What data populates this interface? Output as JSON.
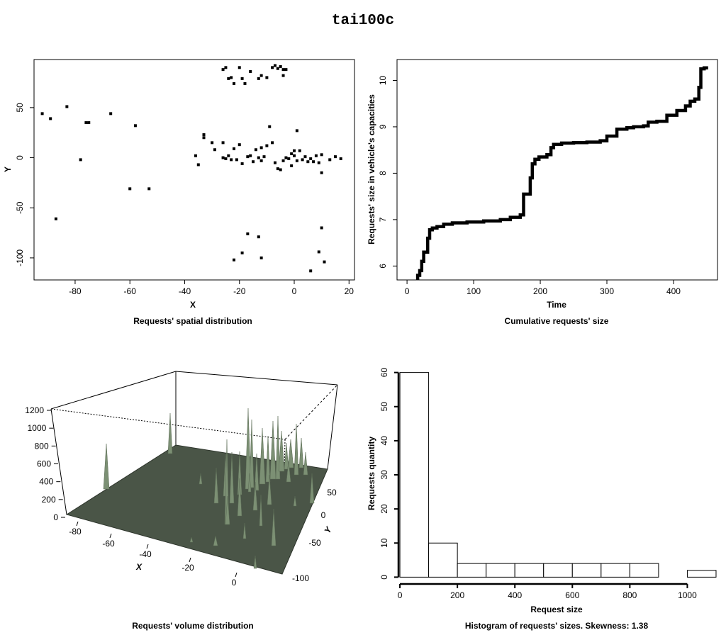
{
  "title": "tai100c",
  "chart_data": [
    {
      "type": "scatter",
      "caption": "Requests' spatial distribution",
      "xlabel": "X",
      "ylabel": "Y",
      "xlim": [
        -95,
        22
      ],
      "ylim": [
        -122,
        98
      ],
      "xticks": [
        -80,
        -60,
        -40,
        -20,
        0,
        20
      ],
      "yticks": [
        -100,
        -50,
        0,
        50
      ],
      "points": [
        [
          -92,
          44
        ],
        [
          -89,
          39
        ],
        [
          -83,
          51
        ],
        [
          -78,
          -2
        ],
        [
          -76,
          35
        ],
        [
          -75,
          35
        ],
        [
          -67,
          44
        ],
        [
          -60,
          -31
        ],
        [
          -58,
          32
        ],
        [
          -53,
          -31
        ],
        [
          -87,
          -61
        ],
        [
          -36,
          2
        ],
        [
          -35,
          -7
        ],
        [
          -33,
          20
        ],
        [
          -33,
          23
        ],
        [
          -30,
          15
        ],
        [
          -29,
          8
        ],
        [
          -26,
          15
        ],
        [
          -26,
          0
        ],
        [
          -25,
          -1
        ],
        [
          -24,
          2
        ],
        [
          -23,
          -2
        ],
        [
          -22,
          9
        ],
        [
          -21,
          -2
        ],
        [
          -20,
          13
        ],
        [
          -19,
          -6
        ],
        [
          -17,
          1
        ],
        [
          -16,
          2
        ],
        [
          -15,
          -4
        ],
        [
          -14,
          8
        ],
        [
          -13,
          0
        ],
        [
          -12,
          -3
        ],
        [
          -12,
          10
        ],
        [
          -11,
          1
        ],
        [
          -10,
          12
        ],
        [
          -9,
          31
        ],
        [
          -8,
          15
        ],
        [
          -7,
          -5
        ],
        [
          -6,
          -11
        ],
        [
          -5,
          -12
        ],
        [
          -4,
          -3
        ],
        [
          -3,
          0
        ],
        [
          -2,
          -1
        ],
        [
          -1,
          4
        ],
        [
          -1,
          -8
        ],
        [
          0,
          7
        ],
        [
          0,
          2
        ],
        [
          1,
          -3
        ],
        [
          1,
          27
        ],
        [
          2,
          7
        ],
        [
          3,
          -2
        ],
        [
          4,
          1
        ],
        [
          5,
          -4
        ],
        [
          6,
          -1
        ],
        [
          7,
          -4
        ],
        [
          8,
          2
        ],
        [
          9,
          -5
        ],
        [
          10,
          3
        ],
        [
          10,
          -15
        ],
        [
          13,
          -2
        ],
        [
          15,
          1
        ],
        [
          17,
          -1
        ],
        [
          -26,
          88
        ],
        [
          -25,
          90
        ],
        [
          -24,
          79
        ],
        [
          -23,
          80
        ],
        [
          -22,
          74
        ],
        [
          -20,
          90
        ],
        [
          -19,
          79
        ],
        [
          -18,
          74
        ],
        [
          -16,
          86
        ],
        [
          -13,
          79
        ],
        [
          -12,
          82
        ],
        [
          -10,
          80
        ],
        [
          -8,
          90
        ],
        [
          -7,
          92
        ],
        [
          -6,
          89
        ],
        [
          -5,
          91
        ],
        [
          -4,
          88
        ],
        [
          -4,
          82
        ],
        [
          -3,
          88
        ],
        [
          -17,
          -76
        ],
        [
          -13,
          -79
        ],
        [
          -22,
          -102
        ],
        [
          -19,
          -95
        ],
        [
          -12,
          -100
        ],
        [
          6,
          -113
        ],
        [
          9,
          -94
        ],
        [
          10,
          -70
        ],
        [
          11,
          -104
        ]
      ]
    },
    {
      "type": "line",
      "caption": "Cumulative requests' size",
      "xlabel": "Time",
      "ylabel": "Requests' size in vehicle's capacities",
      "xlim": [
        -15,
        466
      ],
      "ylim": [
        5.7,
        10.45
      ],
      "xticks": [
        0,
        100,
        200,
        300,
        400
      ],
      "yticks": [
        6,
        7,
        8,
        9,
        10
      ],
      "x": [
        16,
        16,
        19,
        19,
        22,
        22,
        25,
        25,
        31,
        31,
        34,
        34,
        38,
        38,
        45,
        45,
        55,
        55,
        68,
        68,
        90,
        90,
        115,
        115,
        140,
        140,
        155,
        155,
        170,
        170,
        175,
        175,
        185,
        185,
        188,
        188,
        192,
        192,
        198,
        198,
        210,
        210,
        216,
        216,
        220,
        220,
        232,
        232,
        250,
        250,
        270,
        270,
        290,
        290,
        300,
        300,
        315,
        315,
        330,
        330,
        340,
        340,
        355,
        355,
        362,
        362,
        375,
        375,
        390,
        390,
        405,
        405,
        418,
        418,
        425,
        425,
        432,
        432,
        438,
        438,
        441,
        441,
        446,
        446,
        452
      ],
      "y": [
        5.7,
        5.8,
        5.8,
        5.9,
        5.9,
        6.1,
        6.1,
        6.3,
        6.3,
        6.6,
        6.6,
        6.78,
        6.78,
        6.82,
        6.82,
        6.85,
        6.85,
        6.9,
        6.9,
        6.93,
        6.93,
        6.95,
        6.95,
        6.97,
        6.97,
        7.0,
        7.0,
        7.05,
        7.05,
        7.1,
        7.1,
        7.55,
        7.55,
        7.9,
        7.9,
        8.2,
        8.2,
        8.3,
        8.3,
        8.35,
        8.35,
        8.4,
        8.4,
        8.55,
        8.55,
        8.62,
        8.62,
        8.65,
        8.65,
        8.66,
        8.66,
        8.67,
        8.67,
        8.7,
        8.7,
        8.8,
        8.8,
        8.95,
        8.95,
        8.98,
        8.98,
        9.0,
        9.0,
        9.02,
        9.02,
        9.1,
        9.1,
        9.12,
        9.12,
        9.25,
        9.25,
        9.35,
        9.35,
        9.45,
        9.45,
        9.55,
        9.55,
        9.6,
        9.6,
        9.85,
        9.85,
        10.25,
        10.25,
        10.27,
        10.27
      ]
    },
    {
      "type": "surface3d",
      "caption": "Requests' volume distribution",
      "xlabel": "X",
      "ylabel": "Y",
      "zlim": [
        0,
        1200
      ],
      "zticks": [
        0,
        200,
        400,
        600,
        800,
        1000,
        1200
      ],
      "xticks": [
        -80,
        -60,
        -40,
        -20,
        0
      ],
      "yticks": [
        50,
        0,
        -50,
        -100
      ],
      "surface_color": "#4a5547",
      "spike_color": "#7c9074"
    },
    {
      "type": "bar",
      "caption": "Histogram of requests' sizes. Skewness: 1.38",
      "xlabel": "Request size",
      "ylabel": "Requests quantity",
      "xlim": [
        -10,
        1105
      ],
      "ylim": [
        -2,
        62
      ],
      "xticks": [
        0,
        200,
        400,
        600,
        800,
        1000
      ],
      "yticks": [
        0,
        10,
        20,
        30,
        40,
        50,
        60
      ],
      "bins": [
        [
          0,
          100,
          60
        ],
        [
          100,
          200,
          10
        ],
        [
          200,
          300,
          4
        ],
        [
          300,
          400,
          4
        ],
        [
          400,
          500,
          4
        ],
        [
          500,
          600,
          4
        ],
        [
          600,
          700,
          4
        ],
        [
          700,
          800,
          4
        ],
        [
          800,
          900,
          4
        ],
        [
          900,
          1000,
          0
        ],
        [
          1000,
          1100,
          2
        ]
      ]
    }
  ]
}
